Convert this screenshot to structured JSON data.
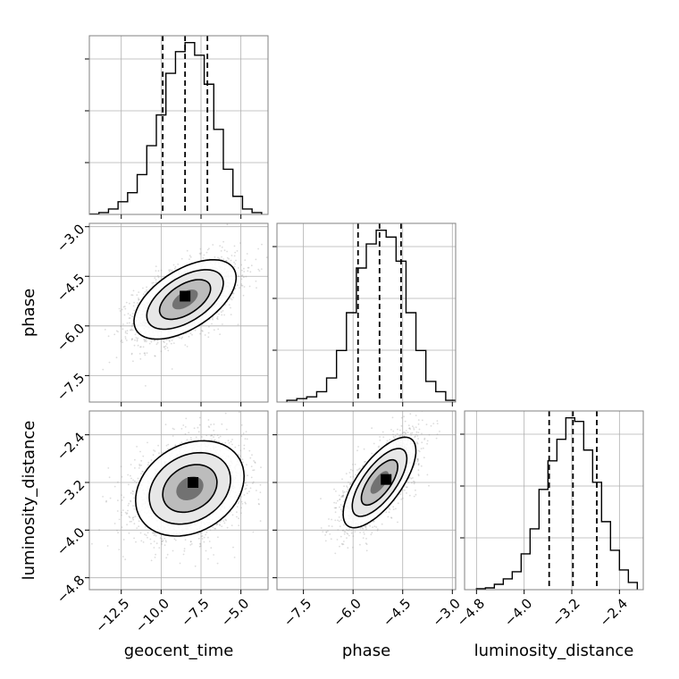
{
  "chart_data": {
    "type": "corner",
    "params": [
      {
        "name": "geocent_time",
        "range": [
          -14.5,
          -3.3
        ],
        "ticks": [
          "−12.5",
          "−10.0",
          "−7.5",
          "−5.0"
        ],
        "tick_values": [
          -12.5,
          -10.0,
          -7.5,
          -5.0
        ],
        "quantiles": [
          -9.9,
          -8.5,
          -7.1
        ],
        "hist": {
          "edges": [
            -14.5,
            -13.9,
            -13.3,
            -12.7,
            -12.1,
            -11.5,
            -10.9,
            -10.3,
            -9.7,
            -9.1,
            -8.5,
            -7.9,
            -7.3,
            -6.7,
            -6.1,
            -5.5,
            -4.9,
            -4.3,
            -3.7
          ],
          "counts": [
            0.002,
            0.01,
            0.03,
            0.07,
            0.12,
            0.22,
            0.38,
            0.55,
            0.78,
            0.9,
            0.95,
            0.88,
            0.72,
            0.47,
            0.25,
            0.1,
            0.03,
            0.01
          ]
        }
      },
      {
        "name": "phase",
        "range": [
          -8.3,
          -2.9
        ],
        "ticks": [
          "−7.5",
          "−6.0",
          "−4.5",
          "−3.0"
        ],
        "tick_values": [
          -7.5,
          -6.0,
          -4.5,
          -3.0
        ],
        "quantiles": [
          -5.85,
          -5.2,
          -4.55
        ],
        "hist": {
          "edges": [
            -8.0,
            -7.7,
            -7.4,
            -7.1,
            -6.8,
            -6.5,
            -6.2,
            -5.9,
            -5.6,
            -5.3,
            -5.0,
            -4.7,
            -4.4,
            -4.1,
            -3.8,
            -3.5,
            -3.2,
            -2.9
          ],
          "counts": [
            0.01,
            0.02,
            0.03,
            0.06,
            0.14,
            0.3,
            0.52,
            0.78,
            0.92,
            1.0,
            0.96,
            0.82,
            0.52,
            0.3,
            0.12,
            0.06,
            0.01
          ]
        }
      },
      {
        "name": "luminosity_distance",
        "range": [
          -5.0,
          -2.0
        ],
        "ticks": [
          "−4.8",
          "−4.0",
          "−3.2",
          "−2.4"
        ],
        "tick_values": [
          -4.8,
          -4.0,
          -3.2,
          -2.4
        ],
        "quantiles": [
          -3.58,
          -3.18,
          -2.78
        ],
        "hist": {
          "edges": [
            -4.8,
            -4.65,
            -4.5,
            -4.35,
            -4.2,
            -4.05,
            -3.9,
            -3.75,
            -3.6,
            -3.45,
            -3.3,
            -3.15,
            -3.0,
            -2.85,
            -2.7,
            -2.55,
            -2.4,
            -2.25,
            -2.1
          ],
          "counts": [
            0.005,
            0.01,
            0.03,
            0.06,
            0.1,
            0.2,
            0.34,
            0.56,
            0.72,
            0.84,
            0.96,
            0.94,
            0.78,
            0.6,
            0.38,
            0.22,
            0.11,
            0.04
          ]
        }
      }
    ],
    "pairs": [
      {
        "x": 0,
        "y": 1,
        "mean": [
          -8.5,
          -5.2
        ],
        "sd": [
          1.6,
          0.6
        ],
        "corr": 0.55,
        "peak": [
          -8.5,
          -5.1
        ]
      },
      {
        "x": 0,
        "y": 2,
        "mean": [
          -8.2,
          -3.3
        ],
        "sd": [
          1.7,
          0.4
        ],
        "corr": 0.25,
        "peak": [
          -8.0,
          -3.2
        ]
      },
      {
        "x": 1,
        "y": 2,
        "mean": [
          -5.2,
          -3.2
        ],
        "sd": [
          0.55,
          0.38
        ],
        "corr": 0.7,
        "peak": [
          -5.0,
          -3.15
        ]
      }
    ],
    "grid": true,
    "colors": {
      "line": "#000000",
      "quantile": "#000000",
      "grid": "#b0b0b0",
      "axes": "#808080"
    }
  }
}
